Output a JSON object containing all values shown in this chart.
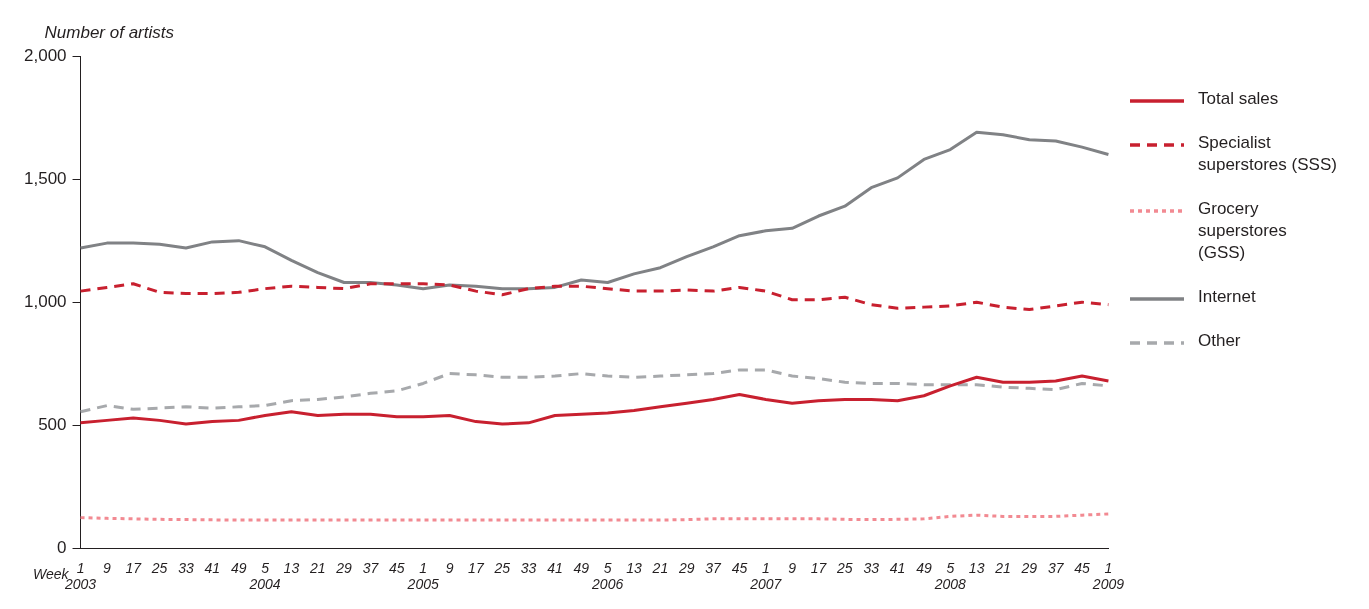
{
  "chart_data": {
    "type": "line",
    "ylabel": "Number of artists",
    "xlabel": "Week",
    "ylim": [
      0,
      2000
    ],
    "yticks": [
      {
        "value": 0,
        "label": "0"
      },
      {
        "value": 500,
        "label": "500"
      },
      {
        "value": 1000,
        "label": "1,000"
      },
      {
        "value": 1500,
        "label": "1,500"
      },
      {
        "value": 2000,
        "label": "2,000"
      }
    ],
    "grid": false,
    "legend": "right",
    "marker": "none",
    "categories": [
      "1\n2003",
      "9",
      "17",
      "25",
      "33",
      "41",
      "49",
      "5\n2004",
      "13",
      "21",
      "29",
      "37",
      "45",
      "1\n2005",
      "9",
      "17",
      "25",
      "33",
      "41",
      "49",
      "5\n2006",
      "13",
      "21",
      "29",
      "37",
      "45",
      "1\n2007",
      "9",
      "17",
      "25",
      "33",
      "41",
      "49",
      "5\n2008",
      "13",
      "21",
      "29",
      "37",
      "45",
      "1\n2009"
    ],
    "series": [
      {
        "name": "Total sales",
        "color": "#c8202f",
        "line_style": "solid",
        "values": [
          510,
          520,
          530,
          520,
          505,
          515,
          520,
          540,
          555,
          540,
          545,
          545,
          535,
          535,
          540,
          515,
          505,
          510,
          540,
          545,
          550,
          560,
          575,
          590,
          605,
          625,
          605,
          590,
          600,
          605,
          605,
          600,
          620,
          660,
          695,
          675,
          675,
          680,
          700,
          680
        ]
      },
      {
        "name": "Specialist superstores (SSS)",
        "color": "#c8202f",
        "line_style": "dashed",
        "values": [
          1045,
          1060,
          1075,
          1040,
          1035,
          1035,
          1040,
          1055,
          1065,
          1060,
          1055,
          1075,
          1075,
          1075,
          1070,
          1045,
          1030,
          1055,
          1065,
          1065,
          1055,
          1045,
          1045,
          1050,
          1045,
          1060,
          1045,
          1010,
          1010,
          1020,
          990,
          975,
          980,
          985,
          1000,
          980,
          970,
          985,
          1000,
          990
        ]
      },
      {
        "name": "Grocery superstores (GSS)",
        "color": "#f28a92",
        "line_style": "dotted",
        "values": [
          125,
          122,
          120,
          118,
          117,
          116,
          115,
          115,
          115,
          115,
          115,
          115,
          115,
          115,
          115,
          115,
          115,
          115,
          115,
          115,
          115,
          115,
          115,
          117,
          120,
          120,
          120,
          120,
          120,
          118,
          117,
          118,
          120,
          130,
          135,
          130,
          130,
          130,
          135,
          140
        ]
      },
      {
        "name": "Internet",
        "color": "#808285",
        "line_style": "solid",
        "values": [
          1220,
          1240,
          1240,
          1235,
          1220,
          1245,
          1250,
          1225,
          1170,
          1120,
          1080,
          1080,
          1070,
          1055,
          1070,
          1065,
          1055,
          1055,
          1060,
          1090,
          1080,
          1115,
          1140,
          1185,
          1225,
          1270,
          1290,
          1300,
          1350,
          1390,
          1465,
          1505,
          1580,
          1620,
          1690,
          1680,
          1660,
          1655,
          1630,
          1600
        ]
      },
      {
        "name": "Other",
        "color": "#a7a9ac",
        "line_style": "dashed",
        "values": [
          555,
          580,
          565,
          570,
          575,
          570,
          575,
          580,
          600,
          605,
          615,
          630,
          640,
          670,
          710,
          705,
          695,
          695,
          700,
          710,
          700,
          695,
          700,
          705,
          710,
          725,
          725,
          700,
          690,
          675,
          670,
          670,
          665,
          665,
          665,
          655,
          650,
          645,
          670,
          660
        ]
      }
    ]
  }
}
